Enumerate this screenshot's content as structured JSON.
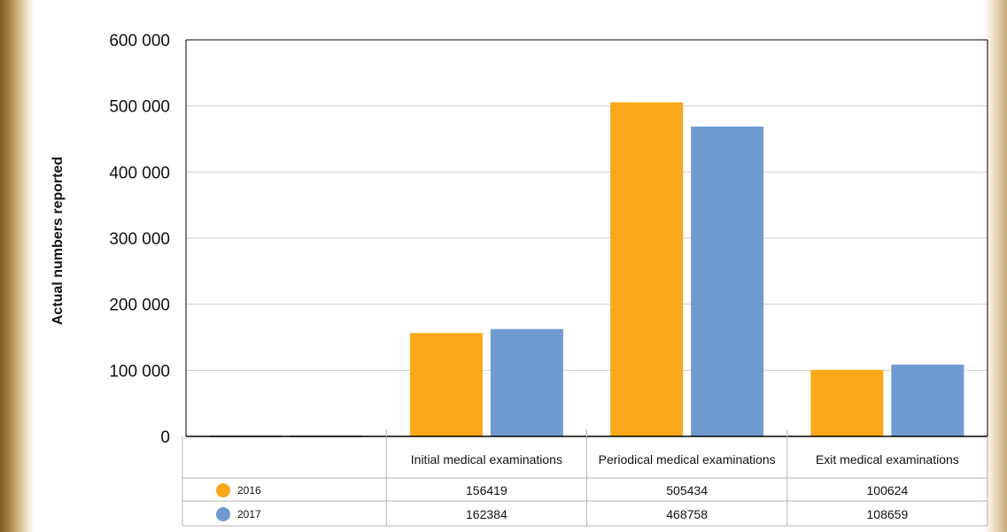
{
  "chart_data": {
    "type": "bar",
    "ylabel": "Actual numbers reported",
    "xlabel": "",
    "ylim": [
      0,
      600000
    ],
    "yticks": [
      {
        "value": 0,
        "label": "0"
      },
      {
        "value": 100000,
        "label": "100 000"
      },
      {
        "value": 200000,
        "label": "200 000"
      },
      {
        "value": 300000,
        "label": "300 000"
      },
      {
        "value": 400000,
        "label": "400 000"
      },
      {
        "value": 500000,
        "label": "500 000"
      },
      {
        "value": 600000,
        "label": "600 000"
      }
    ],
    "grid": true,
    "legend_placement": "data-table-left",
    "categories": [
      "",
      "Initial medical examinations",
      "Periodical medical examinations",
      "Exit medical examinations"
    ],
    "series": [
      {
        "name": "2016",
        "color": "#F9A81A",
        "values": [
          0,
          156419,
          505434,
          100624
        ]
      },
      {
        "name": "2017",
        "color": "#6F9BD1",
        "values": [
          0,
          162384,
          468758,
          108659
        ]
      }
    ],
    "table_values": [
      [
        "",
        "156419",
        "505434",
        "100624"
      ],
      [
        "",
        "162384",
        "468758",
        "108659"
      ]
    ]
  }
}
